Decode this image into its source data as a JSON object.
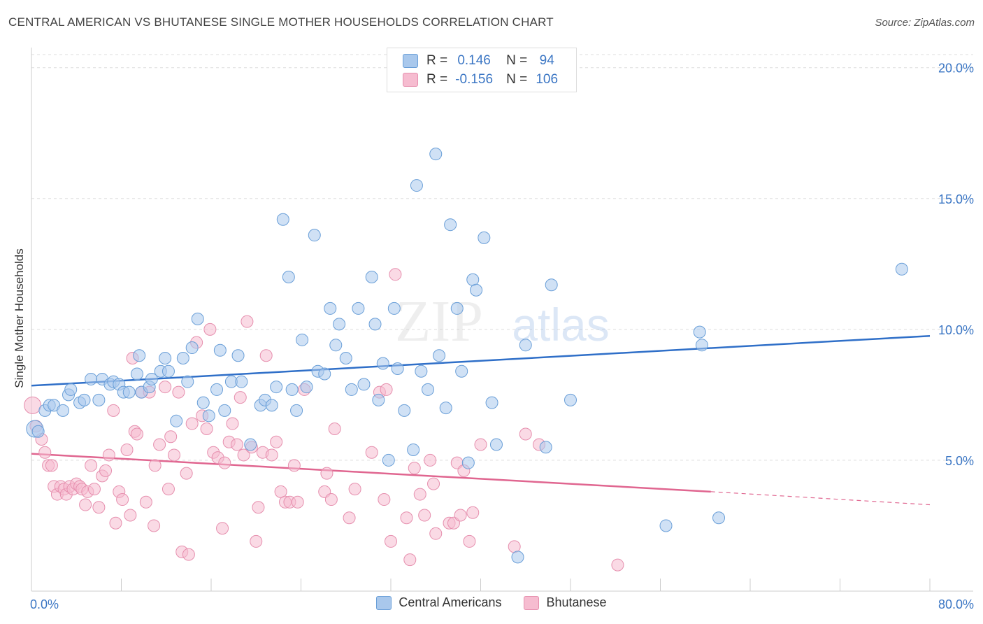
{
  "header": {
    "title": "CENTRAL AMERICAN VS BHUTANESE SINGLE MOTHER HOUSEHOLDS CORRELATION CHART",
    "source": "Source: ZipAtlas.com"
  },
  "legend": {
    "rows": [
      {
        "r_label": "R =",
        "r_value": "0.146",
        "n_label": "N =",
        "n_value": "94"
      },
      {
        "r_label": "R =",
        "r_value": "-0.156",
        "n_label": "N =",
        "n_value": "106"
      }
    ]
  },
  "watermark": {
    "zip": "ZIP",
    "atlas": "atlas"
  },
  "colors": {
    "blue_fill": "#a9c8ec",
    "blue_stroke": "#6a9fd8",
    "blue_line": "#2f6fc8",
    "pink_fill": "#f6bcd0",
    "pink_stroke": "#e68fae",
    "pink_line": "#e06690",
    "tick_text": "#3b76c4",
    "grid": "#dddddd"
  },
  "chart_data": {
    "type": "scatter",
    "title": "CENTRAL AMERICAN VS BHUTANESE SINGLE MOTHER HOUSEHOLDS CORRELATION CHART",
    "xlabel": "",
    "ylabel": "Single Mother Households",
    "xlim": [
      0,
      80
    ],
    "ylim": [
      0,
      20.5
    ],
    "x_tick_labels": [
      "0.0%",
      "80.0%"
    ],
    "y_ticks": [
      5,
      10,
      15,
      20
    ],
    "y_tick_labels": [
      "5.0%",
      "10.0%",
      "15.0%",
      "20.0%"
    ],
    "grid": true,
    "legend_placement": "bottom-center",
    "series": [
      {
        "name": "Central Americans",
        "color": "#a9c8ec",
        "trend": {
          "x": [
            0,
            80
          ],
          "y": [
            7.85,
            9.75
          ],
          "dashed_after": null
        },
        "points": [
          [
            0.3,
            6.2
          ],
          [
            0.6,
            6.1
          ],
          [
            1.2,
            6.9
          ],
          [
            1.6,
            7.1
          ],
          [
            2.0,
            7.1
          ],
          [
            2.8,
            6.9
          ],
          [
            3.3,
            7.5
          ],
          [
            3.5,
            7.7
          ],
          [
            4.3,
            7.2
          ],
          [
            4.7,
            7.3
          ],
          [
            5.3,
            8.1
          ],
          [
            6.0,
            7.3
          ],
          [
            6.3,
            8.1
          ],
          [
            7.0,
            7.9
          ],
          [
            7.3,
            8.0
          ],
          [
            7.8,
            7.9
          ],
          [
            8.2,
            7.6
          ],
          [
            8.7,
            7.6
          ],
          [
            9.4,
            8.3
          ],
          [
            9.6,
            9.0
          ],
          [
            9.8,
            7.6
          ],
          [
            10.5,
            7.8
          ],
          [
            10.7,
            8.1
          ],
          [
            11.5,
            8.4
          ],
          [
            11.9,
            8.9
          ],
          [
            12.2,
            8.4
          ],
          [
            12.9,
            6.5
          ],
          [
            13.5,
            8.9
          ],
          [
            13.9,
            8.0
          ],
          [
            14.3,
            9.3
          ],
          [
            14.8,
            10.4
          ],
          [
            15.3,
            7.2
          ],
          [
            15.8,
            6.7
          ],
          [
            16.5,
            7.7
          ],
          [
            16.8,
            9.2
          ],
          [
            17.2,
            6.9
          ],
          [
            17.8,
            8.0
          ],
          [
            18.4,
            9.0
          ],
          [
            18.7,
            8.0
          ],
          [
            19.5,
            5.6
          ],
          [
            20.4,
            7.1
          ],
          [
            20.8,
            7.3
          ],
          [
            21.4,
            7.1
          ],
          [
            21.8,
            7.8
          ],
          [
            22.4,
            14.2
          ],
          [
            22.9,
            12.0
          ],
          [
            23.2,
            7.7
          ],
          [
            23.6,
            6.9
          ],
          [
            24.1,
            9.6
          ],
          [
            24.5,
            7.8
          ],
          [
            25.2,
            13.6
          ],
          [
            25.5,
            8.4
          ],
          [
            26.1,
            8.3
          ],
          [
            26.6,
            10.8
          ],
          [
            27.1,
            9.4
          ],
          [
            27.4,
            10.2
          ],
          [
            28.0,
            8.9
          ],
          [
            28.5,
            7.7
          ],
          [
            29.1,
            10.8
          ],
          [
            29.6,
            7.9
          ],
          [
            30.3,
            12.0
          ],
          [
            30.6,
            10.2
          ],
          [
            30.9,
            7.3
          ],
          [
            31.3,
            8.7
          ],
          [
            31.8,
            5.0
          ],
          [
            32.3,
            10.8
          ],
          [
            32.6,
            8.5
          ],
          [
            33.2,
            6.9
          ],
          [
            34.0,
            5.4
          ],
          [
            34.3,
            15.5
          ],
          [
            34.7,
            8.4
          ],
          [
            35.3,
            7.7
          ],
          [
            36.0,
            16.7
          ],
          [
            36.3,
            9.0
          ],
          [
            36.9,
            7.0
          ],
          [
            37.3,
            14.0
          ],
          [
            37.9,
            10.8
          ],
          [
            38.3,
            8.4
          ],
          [
            38.9,
            4.9
          ],
          [
            39.3,
            11.9
          ],
          [
            39.6,
            11.5
          ],
          [
            40.3,
            13.5
          ],
          [
            41.0,
            7.2
          ],
          [
            41.4,
            5.6
          ],
          [
            43.3,
            1.3
          ],
          [
            44.0,
            9.4
          ],
          [
            45.8,
            5.5
          ],
          [
            46.3,
            11.7
          ],
          [
            48.0,
            7.3
          ],
          [
            56.5,
            2.5
          ],
          [
            59.5,
            9.9
          ],
          [
            59.7,
            9.4
          ],
          [
            61.2,
            2.8
          ],
          [
            77.5,
            12.3
          ]
        ]
      },
      {
        "name": "Bhutanese",
        "color": "#f6bcd0",
        "trend": {
          "x": [
            0,
            60.5
          ],
          "y": [
            5.25,
            3.8
          ],
          "dashed_after": 60.5,
          "dash_to": [
            80,
            3.3
          ]
        },
        "points": [
          [
            0.1,
            7.1
          ],
          [
            0.4,
            6.3
          ],
          [
            0.9,
            5.8
          ],
          [
            1.2,
            5.3
          ],
          [
            1.5,
            4.8
          ],
          [
            1.8,
            4.8
          ],
          [
            2.0,
            4.0
          ],
          [
            2.3,
            3.7
          ],
          [
            2.6,
            4.0
          ],
          [
            2.9,
            3.9
          ],
          [
            3.1,
            3.7
          ],
          [
            3.4,
            4.0
          ],
          [
            3.7,
            3.9
          ],
          [
            4.0,
            4.1
          ],
          [
            4.3,
            4.0
          ],
          [
            4.5,
            3.9
          ],
          [
            4.8,
            3.3
          ],
          [
            5.0,
            3.8
          ],
          [
            5.3,
            4.8
          ],
          [
            5.6,
            3.9
          ],
          [
            6.0,
            3.2
          ],
          [
            6.3,
            4.4
          ],
          [
            6.6,
            4.6
          ],
          [
            6.9,
            5.2
          ],
          [
            7.3,
            6.9
          ],
          [
            7.5,
            2.6
          ],
          [
            7.8,
            3.8
          ],
          [
            8.1,
            3.5
          ],
          [
            8.5,
            5.4
          ],
          [
            8.8,
            2.9
          ],
          [
            9.0,
            8.9
          ],
          [
            9.2,
            6.1
          ],
          [
            9.4,
            6.0
          ],
          [
            9.8,
            7.6
          ],
          [
            10.2,
            3.4
          ],
          [
            10.5,
            7.6
          ],
          [
            10.9,
            2.5
          ],
          [
            11.0,
            4.8
          ],
          [
            11.4,
            5.6
          ],
          [
            11.9,
            7.8
          ],
          [
            12.2,
            3.9
          ],
          [
            12.4,
            5.9
          ],
          [
            12.7,
            5.2
          ],
          [
            13.1,
            7.6
          ],
          [
            13.4,
            1.5
          ],
          [
            13.8,
            4.5
          ],
          [
            14.0,
            1.4
          ],
          [
            14.3,
            6.4
          ],
          [
            14.7,
            9.5
          ],
          [
            15.2,
            6.7
          ],
          [
            15.6,
            6.2
          ],
          [
            15.9,
            10.0
          ],
          [
            16.2,
            5.3
          ],
          [
            16.6,
            5.1
          ],
          [
            17.0,
            2.4
          ],
          [
            17.2,
            4.9
          ],
          [
            17.6,
            5.7
          ],
          [
            17.9,
            6.4
          ],
          [
            18.3,
            5.6
          ],
          [
            18.6,
            7.4
          ],
          [
            18.9,
            5.2
          ],
          [
            19.2,
            10.3
          ],
          [
            19.6,
            5.5
          ],
          [
            20.0,
            1.9
          ],
          [
            20.2,
            3.2
          ],
          [
            20.6,
            5.3
          ],
          [
            20.9,
            9.0
          ],
          [
            21.4,
            5.2
          ],
          [
            21.8,
            5.7
          ],
          [
            22.2,
            3.8
          ],
          [
            22.6,
            3.4
          ],
          [
            23.0,
            3.4
          ],
          [
            23.4,
            4.8
          ],
          [
            23.7,
            3.4
          ],
          [
            24.3,
            7.7
          ],
          [
            26.1,
            3.8
          ],
          [
            26.3,
            4.5
          ],
          [
            26.7,
            3.5
          ],
          [
            27.0,
            6.2
          ],
          [
            28.3,
            2.8
          ],
          [
            28.8,
            3.9
          ],
          [
            30.3,
            5.3
          ],
          [
            31.0,
            7.6
          ],
          [
            31.4,
            3.5
          ],
          [
            31.6,
            7.7
          ],
          [
            32.0,
            1.9
          ],
          [
            32.4,
            12.1
          ],
          [
            33.4,
            2.8
          ],
          [
            33.7,
            1.2
          ],
          [
            34.1,
            4.7
          ],
          [
            34.6,
            3.7
          ],
          [
            35.0,
            2.9
          ],
          [
            35.5,
            5.0
          ],
          [
            35.8,
            4.1
          ],
          [
            36.0,
            2.2
          ],
          [
            37.2,
            2.6
          ],
          [
            37.6,
            2.6
          ],
          [
            37.9,
            4.9
          ],
          [
            38.2,
            2.9
          ],
          [
            38.5,
            4.6
          ],
          [
            39.0,
            1.9
          ],
          [
            39.3,
            3.0
          ],
          [
            40.0,
            5.6
          ],
          [
            43.0,
            1.7
          ],
          [
            44.0,
            6.0
          ],
          [
            45.2,
            5.6
          ],
          [
            52.2,
            1.0
          ]
        ]
      }
    ]
  },
  "bottom_legend": [
    {
      "label": "Central Americans"
    },
    {
      "label": "Bhutanese"
    }
  ]
}
